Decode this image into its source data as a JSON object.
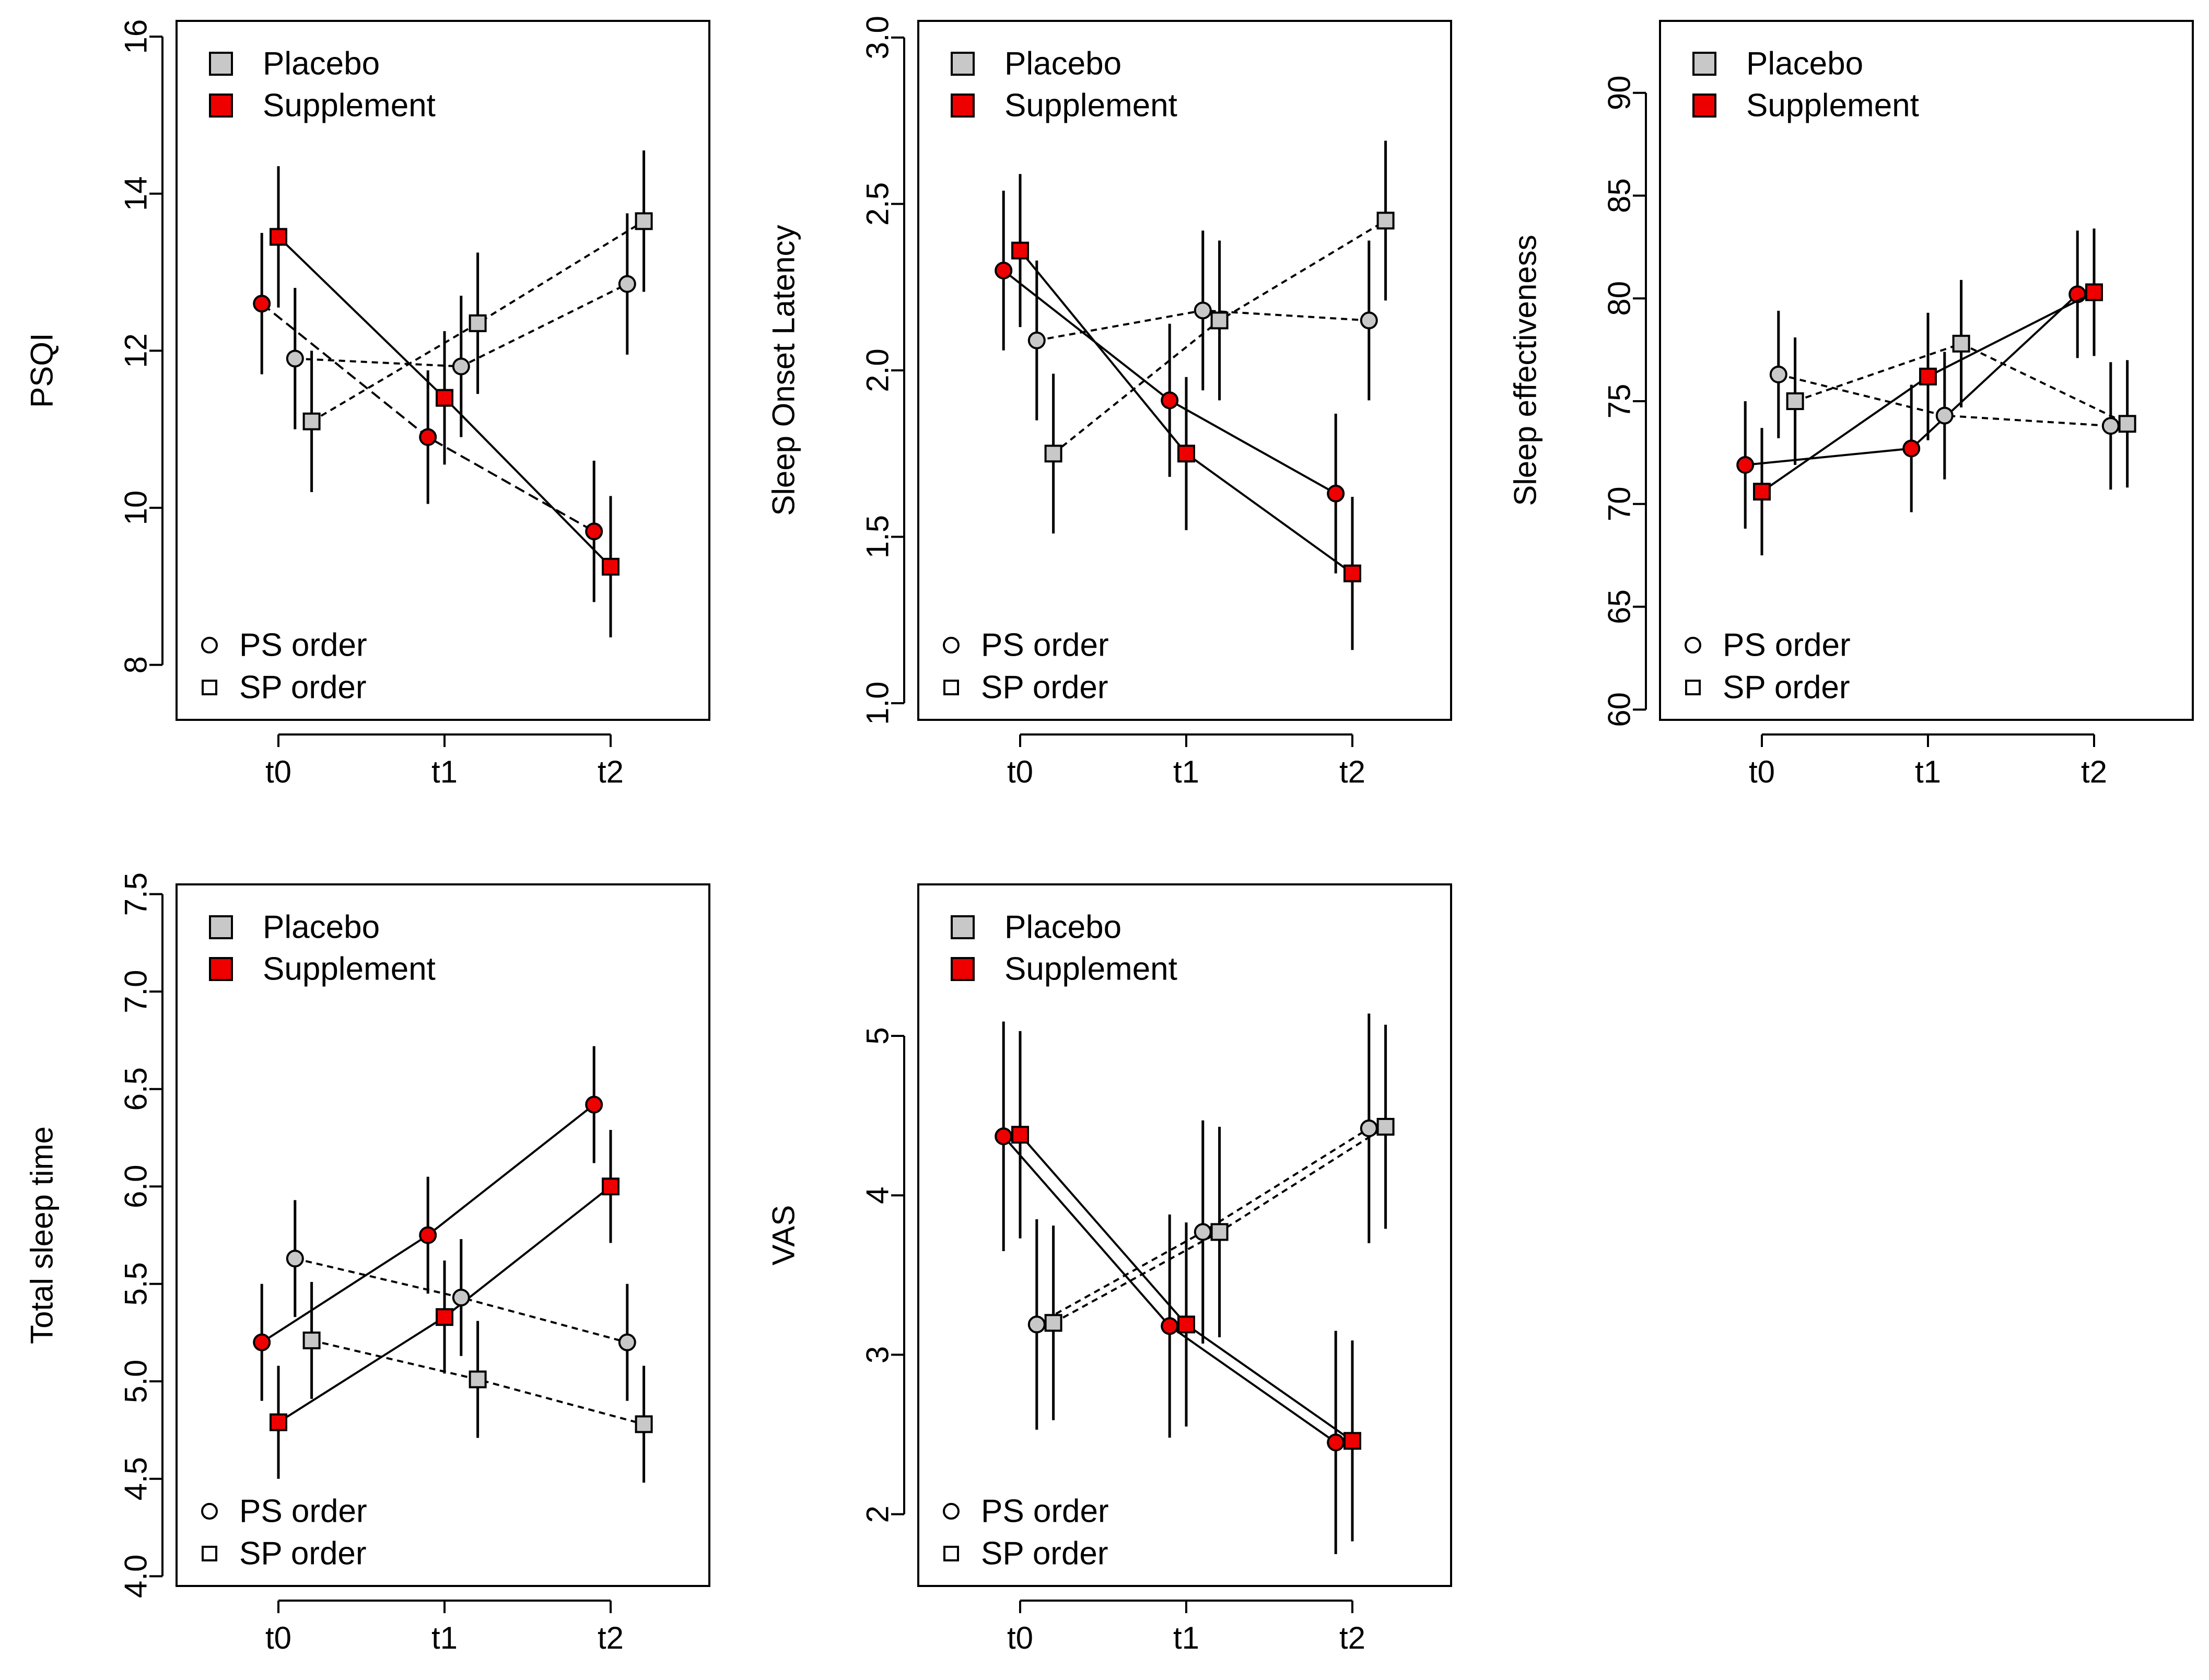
{
  "colors": {
    "placebo": "#c8c8c8",
    "supplement": "#ee0000",
    "stroke": "#000000",
    "background": "#ffffff"
  },
  "legend": {
    "placebo": "Placebo",
    "supplement": "Supplement",
    "ps_order": "PS order",
    "sp_order": "SP order"
  },
  "chart_data": [
    {
      "type": "line",
      "title": "",
      "xlabel": "",
      "ylabel": "PSQI",
      "categories": [
        "t0",
        "t1",
        "t2"
      ],
      "ylim": [
        7.3,
        16.2
      ],
      "yticks": [
        8,
        10,
        12,
        14,
        16
      ],
      "series": [
        {
          "name": "PS order",
          "shape": "circle",
          "line": "dashed",
          "treatment": [
            "supplement",
            "supplement",
            "supplement"
          ],
          "values": [
            12.6,
            10.9,
            9.7
          ],
          "err": [
            0.9,
            0.85,
            0.9
          ]
        },
        {
          "name": "SP order",
          "shape": "square",
          "line": "solid",
          "treatment": [
            "supplement",
            "supplement",
            "supplement"
          ],
          "values": [
            13.45,
            11.4,
            9.25
          ],
          "err": [
            0.9,
            0.85,
            0.9
          ]
        },
        {
          "name": "PS order",
          "shape": "circle",
          "line": "dotted",
          "treatment": [
            "placebo",
            "placebo",
            "placebo"
          ],
          "values": [
            11.9,
            11.8,
            12.85
          ],
          "err": [
            0.9,
            0.9,
            0.9
          ]
        },
        {
          "name": "SP order",
          "shape": "square",
          "line": "dotted",
          "treatment": [
            "placebo",
            "placebo",
            "placebo"
          ],
          "values": [
            11.1,
            12.35,
            13.65
          ],
          "err": [
            0.9,
            0.9,
            0.9
          ]
        }
      ]
    },
    {
      "type": "line",
      "title": "",
      "xlabel": "",
      "ylabel": "Sleep Onset Latency",
      "categories": [
        "t0",
        "t1",
        "t2"
      ],
      "ylim": [
        0.95,
        3.05
      ],
      "yticks": [
        1.0,
        1.5,
        2.0,
        2.5,
        3.0
      ],
      "series": [
        {
          "name": "PS order",
          "shape": "circle",
          "line": "solid",
          "treatment": [
            "supplement",
            "supplement",
            "supplement"
          ],
          "values": [
            2.3,
            1.91,
            1.63
          ],
          "err": [
            0.24,
            0.23,
            0.24
          ]
        },
        {
          "name": "SP order",
          "shape": "square",
          "line": "solid",
          "treatment": [
            "supplement",
            "supplement",
            "supplement"
          ],
          "values": [
            2.36,
            1.75,
            1.39
          ],
          "err": [
            0.23,
            0.23,
            0.23
          ]
        },
        {
          "name": "PS order",
          "shape": "circle",
          "line": "dotted",
          "treatment": [
            "placebo",
            "placebo",
            "placebo"
          ],
          "values": [
            2.09,
            2.18,
            2.15
          ],
          "err": [
            0.24,
            0.24,
            0.24
          ]
        },
        {
          "name": "SP order",
          "shape": "square",
          "line": "dotted",
          "treatment": [
            "placebo",
            "placebo",
            "placebo"
          ],
          "values": [
            1.75,
            2.15,
            2.45
          ],
          "err": [
            0.24,
            0.24,
            0.24
          ]
        }
      ]
    },
    {
      "type": "line",
      "title": "",
      "xlabel": "",
      "ylabel": "Sleep effectiveness",
      "categories": [
        "t0",
        "t1",
        "t2"
      ],
      "ylim": [
        59.5,
        93.5
      ],
      "yticks": [
        60,
        65,
        70,
        75,
        80,
        85,
        90
      ],
      "series": [
        {
          "name": "PS order",
          "shape": "circle",
          "line": "solid",
          "treatment": [
            "supplement",
            "supplement",
            "supplement"
          ],
          "values": [
            71.9,
            72.7,
            80.2
          ],
          "err": [
            3.1,
            3.1,
            3.1
          ]
        },
        {
          "name": "SP order",
          "shape": "square",
          "line": "solid",
          "treatment": [
            "supplement",
            "supplement",
            "supplement"
          ],
          "values": [
            70.6,
            76.2,
            80.3
          ],
          "err": [
            3.1,
            3.1,
            3.1
          ]
        },
        {
          "name": "PS order",
          "shape": "circle",
          "line": "dotted",
          "treatment": [
            "placebo",
            "placebo",
            "placebo"
          ],
          "values": [
            76.3,
            74.3,
            73.8
          ],
          "err": [
            3.1,
            3.1,
            3.1
          ]
        },
        {
          "name": "SP order",
          "shape": "square",
          "line": "dotted",
          "treatment": [
            "placebo",
            "placebo",
            "placebo"
          ],
          "values": [
            75.0,
            77.8,
            73.9
          ],
          "err": [
            3.1,
            3.1,
            3.1
          ]
        }
      ]
    },
    {
      "type": "line",
      "title": "",
      "xlabel": "",
      "ylabel": "Total sleep time",
      "categories": [
        "t0",
        "t1",
        "t2"
      ],
      "ylim": [
        3.95,
        7.55
      ],
      "yticks": [
        4.0,
        4.5,
        5.0,
        5.5,
        6.0,
        6.5,
        7.0,
        7.5
      ],
      "series": [
        {
          "name": "PS order",
          "shape": "circle",
          "line": "solid",
          "treatment": [
            "supplement",
            "supplement",
            "supplement"
          ],
          "values": [
            5.2,
            5.75,
            6.42
          ],
          "err": [
            0.3,
            0.3,
            0.3
          ]
        },
        {
          "name": "SP order",
          "shape": "square",
          "line": "solid",
          "treatment": [
            "supplement",
            "supplement",
            "supplement"
          ],
          "values": [
            4.79,
            5.33,
            6.0
          ],
          "err": [
            0.29,
            0.29,
            0.29
          ]
        },
        {
          "name": "PS order",
          "shape": "circle",
          "line": "dotted",
          "treatment": [
            "placebo",
            "placebo",
            "placebo"
          ],
          "values": [
            5.63,
            5.43,
            5.2
          ],
          "err": [
            0.3,
            0.3,
            0.3
          ]
        },
        {
          "name": "SP order",
          "shape": "square",
          "line": "dotted",
          "treatment": [
            "placebo",
            "placebo",
            "placebo"
          ],
          "values": [
            5.21,
            5.01,
            4.78
          ],
          "err": [
            0.3,
            0.3,
            0.3
          ]
        }
      ]
    },
    {
      "type": "line",
      "title": "",
      "xlabel": "",
      "ylabel": "VAS",
      "categories": [
        "t0",
        "t1",
        "t2"
      ],
      "ylim": [
        1.55,
        5.95
      ],
      "yticks": [
        2,
        3,
        4,
        5
      ],
      "series": [
        {
          "name": "PS order",
          "shape": "circle",
          "line": "solid",
          "treatment": [
            "supplement",
            "supplement",
            "supplement"
          ],
          "values": [
            4.37,
            3.18,
            2.45
          ],
          "err": [
            0.72,
            0.7,
            0.7
          ]
        },
        {
          "name": "SP order",
          "shape": "square",
          "line": "solid",
          "treatment": [
            "supplement",
            "supplement",
            "supplement"
          ],
          "values": [
            4.38,
            3.19,
            2.46
          ],
          "err": [
            0.65,
            0.64,
            0.63
          ]
        },
        {
          "name": "PS order",
          "shape": "circle",
          "line": "dotted",
          "treatment": [
            "placebo",
            "placebo",
            "placebo"
          ],
          "values": [
            3.19,
            3.77,
            4.42
          ],
          "err": [
            0.66,
            0.7,
            0.72
          ]
        },
        {
          "name": "SP order",
          "shape": "square",
          "line": "dotted",
          "treatment": [
            "placebo",
            "placebo",
            "placebo"
          ],
          "values": [
            3.2,
            3.77,
            4.43
          ],
          "err": [
            0.61,
            0.66,
            0.64
          ]
        }
      ]
    }
  ]
}
